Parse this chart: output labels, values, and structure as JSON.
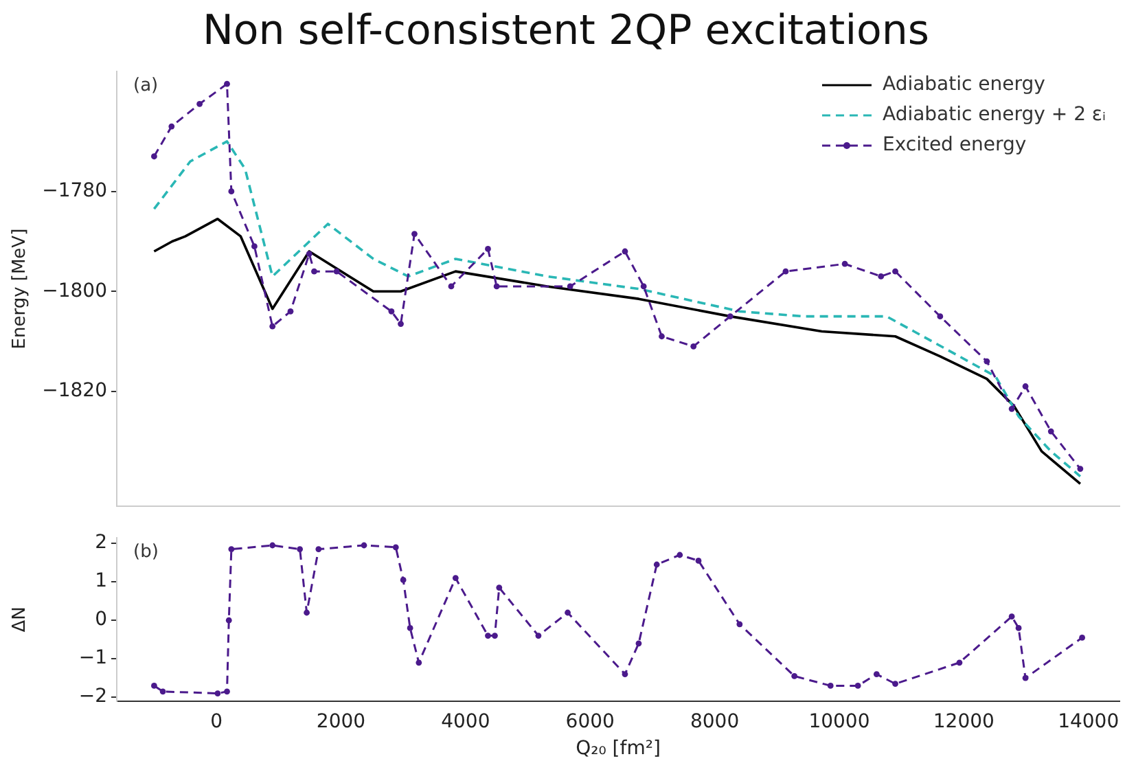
{
  "chart_data": [
    {
      "type": "line",
      "title": "Non self-consistent 2QP excitations",
      "ylabel": "Energy [MeV]",
      "annotations": [
        "(a)"
      ],
      "legend": "top right",
      "grid": false,
      "tick_labels": "y",
      "xlim": [
        -1600,
        14500
      ],
      "xticks": [
        0,
        2000,
        4000,
        6000,
        8000,
        10000,
        12000,
        14000
      ],
      "ylim": [
        -1843,
        -1756
      ],
      "yticks": [
        -1780,
        -1800,
        -1820
      ],
      "series": [
        {
          "name": "Adiabatic energy",
          "color": "#000000",
          "marker": "none",
          "line_style": "solid",
          "x": [
            -1000,
            -710,
            -500,
            20,
            390,
            900,
            1490,
            2520,
            2960,
            3840,
            5310,
            6780,
            8250,
            9720,
            10900,
            11620,
            12370,
            12810,
            13250,
            13870
          ],
          "values": [
            -1792,
            -1790,
            -1789,
            -1785.5,
            -1789,
            -1803.5,
            -1792,
            -1800,
            -1800,
            -1796,
            -1799,
            -1801.5,
            -1805,
            -1808,
            -1809,
            -1813,
            -1817.5,
            -1823,
            -1832,
            -1838.5
          ]
        },
        {
          "name": "Adiabatic energy + 2 εᵢ",
          "color": "#2ab7b5",
          "marker": "none",
          "line_style": "dashed",
          "x": [
            -1000,
            -420,
            170,
            460,
            900,
            1790,
            2520,
            3080,
            3840,
            5310,
            6780,
            8400,
            9430,
            10760,
            11200,
            12510,
            12880,
            13400,
            13870
          ],
          "values": [
            -1783.5,
            -1774,
            -1770,
            -1775.5,
            -1797,
            -1786.5,
            -1793.5,
            -1797,
            -1793.5,
            -1797,
            -1799.5,
            -1804,
            -1805,
            -1805,
            -1808,
            -1817,
            -1825,
            -1832,
            -1837
          ]
        },
        {
          "name": "Excited energy",
          "color": "#4b1a8c",
          "marker": "circle",
          "line_style": "dashed",
          "x": [
            -1000,
            -720,
            -270,
            170,
            240,
            610,
            900,
            1190,
            1490,
            1570,
            1930,
            2810,
            2960,
            3180,
            3770,
            4360,
            4500,
            5680,
            6560,
            6860,
            7150,
            7660,
            8250,
            9140,
            10090,
            10670,
            10900,
            11620,
            12370,
            12770,
            12990,
            13400,
            13870
          ],
          "values": [
            -1773,
            -1767,
            -1762.5,
            -1758.5,
            -1780,
            -1791,
            -1807,
            -1804,
            -1792.5,
            -1796,
            -1796,
            -1804,
            -1806.5,
            -1788.5,
            -1799,
            -1791.5,
            -1799,
            -1799,
            -1792,
            -1799,
            -1809,
            -1811,
            -1805,
            -1796,
            -1794.5,
            -1797,
            -1796,
            -1805,
            -1814,
            -1823.5,
            -1819,
            -1828,
            -1835.5
          ]
        }
      ]
    },
    {
      "type": "line",
      "xlabel": "Q₂₀ [fm²]",
      "ylabel": "ΔN",
      "annotations": [
        "(b)"
      ],
      "grid": false,
      "xlim": [
        -1600,
        14500
      ],
      "xticks": [
        0,
        2000,
        4000,
        6000,
        8000,
        10000,
        12000,
        14000
      ],
      "ylim": [
        -2.1,
        2.15
      ],
      "yticks": [
        -2,
        -1,
        0,
        1,
        2
      ],
      "series": [
        {
          "color": "#4b1a8c",
          "marker": "circle",
          "line_style": "dashed",
          "x": [
            -1000,
            -860,
            20,
            170,
            200,
            240,
            900,
            1340,
            1450,
            1640,
            2370,
            2880,
            3000,
            3110,
            3250,
            3840,
            4360,
            4470,
            4540,
            5170,
            5640,
            6560,
            6780,
            7070,
            7440,
            7740,
            8400,
            9280,
            9860,
            10300,
            10600,
            10900,
            11930,
            12770,
            12880,
            12990,
            13900
          ],
          "values": [
            -1.7,
            -1.85,
            -1.9,
            -1.85,
            0,
            1.85,
            1.95,
            1.85,
            0.2,
            1.85,
            1.95,
            1.9,
            1.05,
            -0.2,
            -1.1,
            1.1,
            -0.4,
            -0.4,
            0.85,
            -0.4,
            0.2,
            -1.4,
            -0.6,
            1.45,
            1.7,
            1.55,
            -0.1,
            -1.45,
            -1.7,
            -1.7,
            -1.4,
            -1.65,
            -1.1,
            0.1,
            -0.2,
            -1.5,
            -0.45
          ]
        }
      ]
    }
  ]
}
